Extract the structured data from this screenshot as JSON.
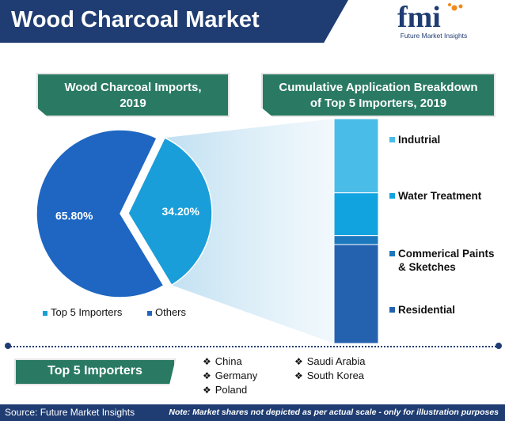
{
  "header": {
    "title": "Wood Charcoal Market"
  },
  "logo": {
    "text": "fmi",
    "subtitle": "Future Market Insights"
  },
  "left_box": {
    "line1": "Wood Charcoal Imports,",
    "line2": "2019"
  },
  "right_box": {
    "line1": "Cumulative Application Breakdown",
    "line2": "of Top 5 Importers, 2019"
  },
  "chart_data": [
    {
      "type": "pie",
      "title": "Wood Charcoal Imports, 2019",
      "slices": [
        {
          "name": "Top 5 Importers",
          "value": 34.2,
          "label": "34.20%",
          "color": "#1a9ed9"
        },
        {
          "name": "Others",
          "value": 65.8,
          "label": "65.80%",
          "color": "#1e66c2"
        }
      ],
      "legend_placement": "bottom"
    },
    {
      "type": "bar",
      "title": "Cumulative Application Breakdown of Top 5 Importers, 2019",
      "stacked": true,
      "categories": [
        "Top 5 Importers"
      ],
      "series": [
        {
          "name": "Indutrial",
          "value": 33,
          "color": "#49bde8"
        },
        {
          "name": "Water Treatment",
          "value": 19,
          "color": "#11a3e0"
        },
        {
          "name": "Commerical Paints & Sketches",
          "value": 4,
          "color": "#1c78bd"
        },
        {
          "name": "Residential",
          "value": 44,
          "color": "#2462b0"
        }
      ]
    }
  ],
  "importers": {
    "label": "Top 5 Importers",
    "countries": [
      "China",
      "Germany",
      "Poland",
      "Saudi Arabia",
      "South Korea"
    ]
  },
  "footer": {
    "source": "Source: Future Market Insights",
    "note": "Note: Market shares not depicted as per actual scale - only for illustration purposes"
  },
  "colors": {
    "navy": "#1f3d72",
    "green": "#2a7a63",
    "accent_orange": "#f08a1d"
  }
}
